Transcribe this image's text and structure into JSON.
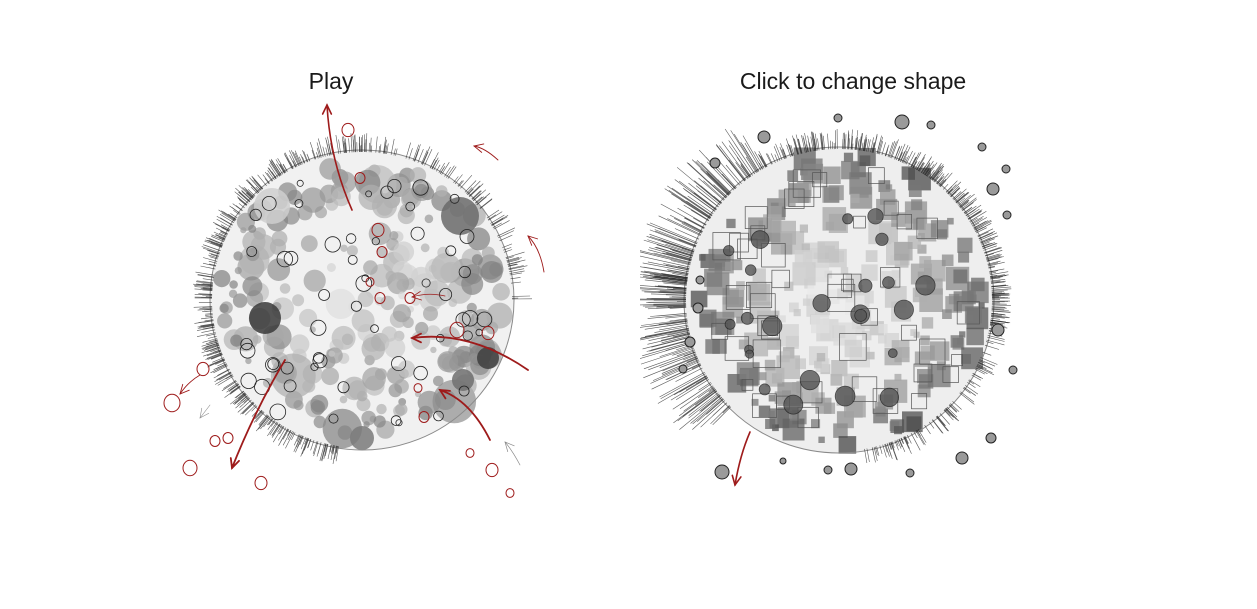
{
  "panels": {
    "left": {
      "caption": "Play"
    },
    "right": {
      "caption": "Click to change shape"
    }
  },
  "colors": {
    "sketch": "#222222",
    "grey": "#8a8a8a",
    "accent": "#9e1b1b"
  }
}
